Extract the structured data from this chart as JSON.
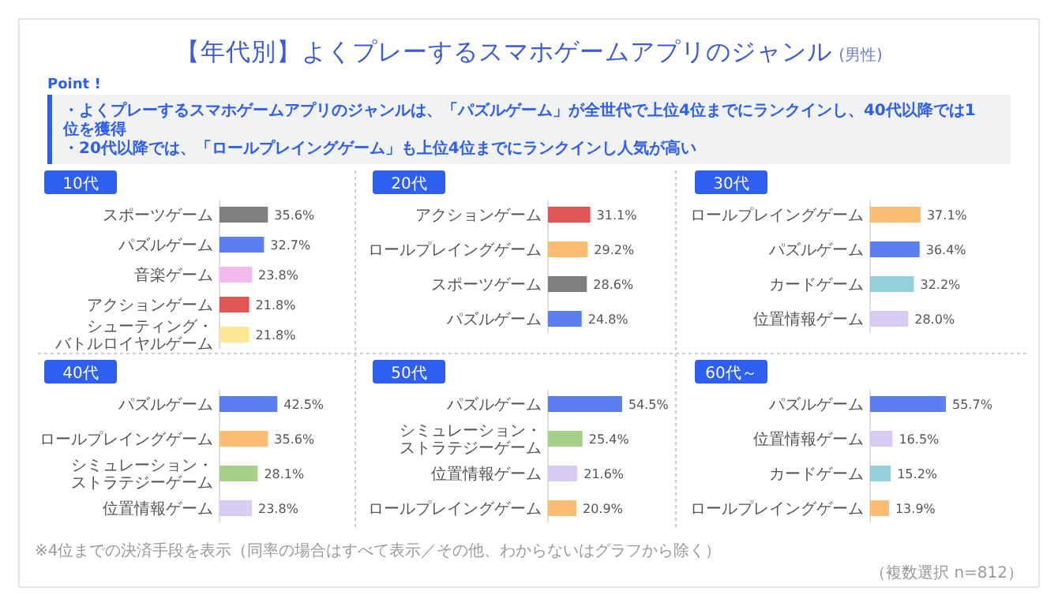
{
  "chart_data": [
    {
      "type": "other",
      "title": "【年代別】よくプレーするスマホゲームアプリのジャンル",
      "subtitle": "(男性)",
      "annotations": [
        "Point !",
        "・よくプレーするスマホゲームアプリのジャンルは、「パズルゲーム」が全世代で上位4位までにランクインし、40代以降では1位を獲得",
        "・20代以降では、「ロールプレイングゲーム」も上位4位までにランクインし人気が高い",
        "※4位までの決済手段を表示（同率の場合はすべて表示／その他、わからないはグラフから除く）",
        "（複数選択 n=812）"
      ]
    },
    {
      "type": "bar",
      "orientation": "horizontal",
      "title": "10代",
      "categories": [
        "スポーツゲーム",
        "パズルゲーム",
        "音楽ゲーム",
        "アクションゲーム",
        "シューティング・バトルロイヤルゲーム"
      ],
      "values": [
        35.6,
        32.7,
        23.8,
        21.8,
        21.8
      ],
      "value_labels": [
        "35.6%",
        "32.7%",
        "23.8%",
        "21.8%",
        "21.8%"
      ],
      "colors": [
        "#7f7f7f",
        "#5b7ff0",
        "#f5b8ee",
        "#e05555",
        "#fde596"
      ],
      "tick_labels": "y"
    },
    {
      "type": "bar",
      "orientation": "horizontal",
      "title": "20代",
      "categories": [
        "アクションゲーム",
        "ロールプレイングゲーム",
        "スポーツゲーム",
        "パズルゲーム"
      ],
      "values": [
        31.1,
        29.2,
        28.6,
        24.8
      ],
      "value_labels": [
        "31.1%",
        "29.2%",
        "28.6%",
        "24.8%"
      ],
      "colors": [
        "#e05555",
        "#fbbd72",
        "#7f7f7f",
        "#5b7ff0"
      ],
      "tick_labels": "y"
    },
    {
      "type": "bar",
      "orientation": "horizontal",
      "title": "30代",
      "categories": [
        "ロールプレイングゲーム",
        "パズルゲーム",
        "カードゲーム",
        "位置情報ゲーム"
      ],
      "values": [
        37.1,
        36.4,
        32.2,
        28.0
      ],
      "value_labels": [
        "37.1%",
        "36.4%",
        "32.2%",
        "28.0%"
      ],
      "colors": [
        "#fbbd72",
        "#5b7ff0",
        "#94cfdc",
        "#d8ccf5"
      ],
      "tick_labels": "y"
    },
    {
      "type": "bar",
      "orientation": "horizontal",
      "title": "40代",
      "categories": [
        "パズルゲーム",
        "ロールプレイングゲーム",
        "シミュレーション・ストラテジーゲーム",
        "位置情報ゲーム"
      ],
      "values": [
        42.5,
        35.6,
        28.1,
        23.8
      ],
      "value_labels": [
        "42.5%",
        "35.6%",
        "28.1%",
        "23.8%"
      ],
      "colors": [
        "#5b7ff0",
        "#fbbd72",
        "#a6d08a",
        "#d8ccf5"
      ],
      "tick_labels": "y"
    },
    {
      "type": "bar",
      "orientation": "horizontal",
      "title": "50代",
      "categories": [
        "パズルゲーム",
        "シミュレーション・ストラテジーゲーム",
        "位置情報ゲーム",
        "ロールプレイングゲーム"
      ],
      "values": [
        54.5,
        25.4,
        21.6,
        20.9
      ],
      "value_labels": [
        "54.5%",
        "25.4%",
        "21.6%",
        "20.9%"
      ],
      "colors": [
        "#5b7ff0",
        "#a6d08a",
        "#d8ccf5",
        "#fbbd72"
      ],
      "tick_labels": "y"
    },
    {
      "type": "bar",
      "orientation": "horizontal",
      "title": "60代～",
      "categories": [
        "パズルゲーム",
        "位置情報ゲーム",
        "カードゲーム",
        "ロールプレイングゲーム"
      ],
      "values": [
        55.7,
        16.5,
        15.2,
        13.9
      ],
      "value_labels": [
        "55.7%",
        "16.5%",
        "15.2%",
        "13.9%"
      ],
      "colors": [
        "#5b7ff0",
        "#d8ccf5",
        "#94cfdc",
        "#fbbd72"
      ],
      "tick_labels": "y"
    }
  ]
}
